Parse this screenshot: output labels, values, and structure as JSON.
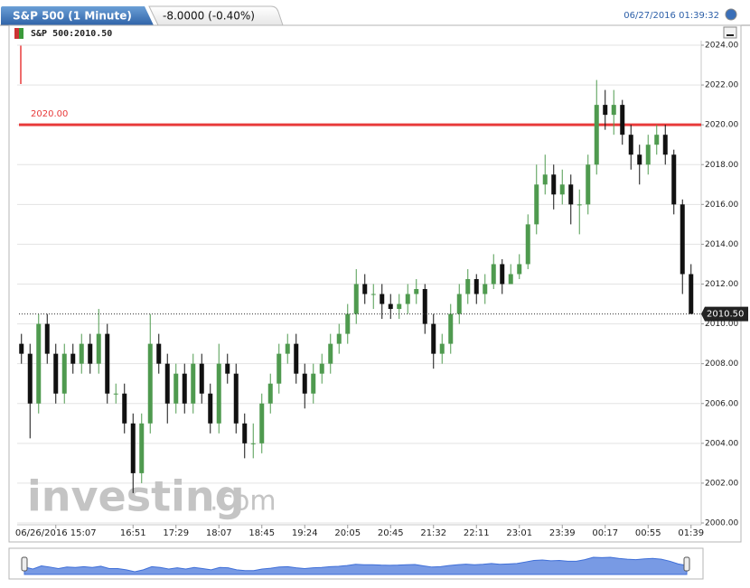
{
  "chart_data": {
    "type": "candlestick",
    "title": "S&P 500 (1 Minute)",
    "change": "-8.0000 (-0.40%)",
    "timestamp": "06/27/2016 01:39:32",
    "legend": "S&P 500:2010.50",
    "watermark": "investing",
    "watermark_suffix": ".com",
    "up_color": "#4f9a4f",
    "down_color": "#111111",
    "grid": true,
    "ylim": [
      2000,
      2024
    ],
    "yticks": [
      {
        "value": 2000,
        "label": "2000.00"
      },
      {
        "value": 2002,
        "label": "2002.00"
      },
      {
        "value": 2004,
        "label": "2004.00"
      },
      {
        "value": 2006,
        "label": "2006.00"
      },
      {
        "value": 2008,
        "label": "2008.00"
      },
      {
        "value": 2010,
        "label": "2010.00"
      },
      {
        "value": 2012,
        "label": "2012.00"
      },
      {
        "value": 2014,
        "label": "2014.00"
      },
      {
        "value": 2016,
        "label": "2016.00"
      },
      {
        "value": 2018,
        "label": "2018.00"
      },
      {
        "value": 2020,
        "label": "2020.00"
      },
      {
        "value": 2022,
        "label": "2022.00"
      },
      {
        "value": 2024,
        "label": "2024.00"
      }
    ],
    "categories": [
      null,
      null,
      null,
      null,
      "06/26/2016 15:07",
      null,
      null,
      null,
      null,
      null,
      null,
      null,
      null,
      "16:51",
      null,
      null,
      null,
      null,
      "17:29",
      null,
      null,
      null,
      null,
      "18:07",
      null,
      null,
      null,
      null,
      "18:45",
      null,
      null,
      null,
      null,
      "19:24",
      null,
      null,
      null,
      null,
      "20:05",
      null,
      null,
      null,
      null,
      "20:45",
      null,
      null,
      null,
      null,
      "21:32",
      null,
      null,
      null,
      null,
      "22:11",
      null,
      null,
      null,
      null,
      "23:01",
      null,
      null,
      null,
      null,
      "23:39",
      null,
      null,
      null,
      null,
      "00:17",
      null,
      null,
      null,
      null,
      "00:55",
      null,
      null,
      null,
      null,
      "01:39"
    ],
    "open": [
      2009,
      2008.5,
      2006,
      2010,
      2008.5,
      2006.5,
      2008.5,
      2008,
      2009,
      2008,
      2009.5,
      2006.5,
      2006.5,
      2005,
      2002.5,
      2005,
      2009,
      2008,
      2006,
      2007.5,
      2006,
      2008,
      2006.5,
      2005,
      2008,
      2007.5,
      2005,
      2004,
      2004,
      2006,
      2007,
      2008.5,
      2009,
      2007.5,
      2006.5,
      2007.5,
      2008,
      2009,
      2009.5,
      2010.5,
      2012,
      2011.5,
      2011.5,
      2011,
      2010.75,
      2011,
      2011.5,
      2011.75,
      2010,
      2008.5,
      2009,
      2010.5,
      2011.5,
      2012.25,
      2011.5,
      2012,
      2013,
      2012,
      2012.5,
      2013,
      2015,
      2017,
      2017.5,
      2016.5,
      2017,
      2016,
      2016,
      2018,
      2021,
      2020.5,
      2021,
      2019.5,
      2018.5,
      2018,
      2019,
      2019.5,
      2018.5,
      2016,
      2012.5
    ],
    "high": [
      2009.5,
      2009,
      2010.5,
      2010.5,
      2009,
      2009,
      2009,
      2009.5,
      2009.5,
      2010.75,
      2010,
      2007,
      2007,
      2005.5,
      2005.5,
      2010.5,
      2009.5,
      2008.5,
      2008,
      2008,
      2008.5,
      2008.5,
      2007,
      2009,
      2008.5,
      2008,
      2005.5,
      2005,
      2006.5,
      2007.5,
      2009,
      2009.5,
      2009.5,
      2008,
      2008,
      2008.5,
      2009.5,
      2010,
      2011,
      2012.75,
      2012.5,
      2012,
      2012,
      2011.5,
      2011.5,
      2012,
      2012.25,
      2012,
      2010.5,
      2009.5,
      2011,
      2012,
      2012.75,
      2012.5,
      2012.5,
      2013.5,
      2013.25,
      2013,
      2013.5,
      2015.5,
      2018,
      2018.5,
      2018,
      2017.75,
      2017.5,
      2016.75,
      2018.5,
      2022.25,
      2021.75,
      2021.75,
      2021.25,
      2020,
      2019,
      2019.5,
      2020,
      2020,
      2018.75,
      2016.25,
      2013
    ],
    "low": [
      2008,
      2004.25,
      2005.5,
      2008,
      2006,
      2006,
      2007.5,
      2007.5,
      2007.5,
      2007.5,
      2006,
      2006,
      2004.5,
      2001.5,
      2002,
      2004.5,
      2007.5,
      2005,
      2005.5,
      2005.5,
      2005.5,
      2006,
      2004.5,
      2004.5,
      2007,
      2004.5,
      2003.25,
      2003.25,
      2003.5,
      2005.5,
      2006.5,
      2008,
      2007,
      2005.75,
      2006,
      2007,
      2007.5,
      2008.5,
      2009,
      2010,
      2011,
      2010.75,
      2010.25,
      2010.25,
      2010.25,
      2010.5,
      2011,
      2009.5,
      2007.75,
      2008,
      2008.5,
      2010,
      2011,
      2011,
      2011,
      2011.75,
      2011.5,
      2012,
      2012.25,
      2012.75,
      2014.5,
      2016.5,
      2015.75,
      2016,
      2015,
      2014.5,
      2015.5,
      2017.5,
      2019.75,
      2019.5,
      2019,
      2017.75,
      2017,
      2017.5,
      2018.5,
      2018,
      2015.5,
      2011.5,
      2010.5
    ],
    "close": [
      2008.5,
      2006,
      2010,
      2008.5,
      2006.5,
      2008.5,
      2008,
      2009,
      2008,
      2009.5,
      2006.5,
      2006.5,
      2005,
      2002.5,
      2005,
      2009,
      2008,
      2006,
      2007.5,
      2006,
      2008,
      2006.5,
      2005,
      2008,
      2007.5,
      2005,
      2004,
      2004,
      2006,
      2007,
      2008.5,
      2009,
      2007.5,
      2006.5,
      2007.5,
      2008,
      2009,
      2009.5,
      2010.5,
      2012,
      2011.5,
      2011.5,
      2011,
      2010.75,
      2011,
      2011.5,
      2011.75,
      2010,
      2008.5,
      2009,
      2010.5,
      2011.5,
      2012.25,
      2011.5,
      2012,
      2013,
      2012,
      2012.5,
      2013,
      2015,
      2017,
      2017.5,
      2016.5,
      2017,
      2016,
      2016,
      2018,
      2021,
      2020.5,
      2021,
      2019.5,
      2018.5,
      2018,
      2019,
      2019.5,
      2018.5,
      2016,
      2012.5,
      2010.5
    ],
    "horizontal_line": {
      "value": 2020,
      "label": "2020.00",
      "color": "#e83a3a"
    },
    "last_price": {
      "value": 2010.5,
      "label": "2010.50"
    },
    "navigator_color": "#3f6fd8"
  }
}
